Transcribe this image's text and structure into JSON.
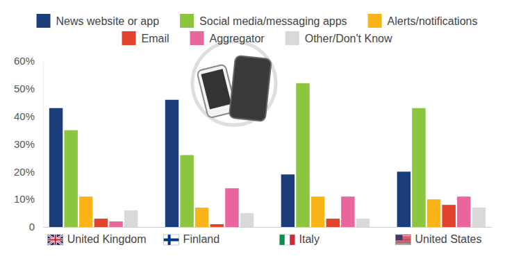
{
  "chart_data": {
    "type": "bar",
    "categories": [
      "United Kingdom",
      "Finland",
      "Italy",
      "United States"
    ],
    "series": [
      {
        "name": "News website or app",
        "color": "#1b3e7a",
        "values": [
          43,
          46,
          19,
          20
        ]
      },
      {
        "name": "Social media/messaging apps",
        "color": "#8cc63e",
        "values": [
          35,
          26,
          52,
          43
        ]
      },
      {
        "name": "Alerts/notifications",
        "color": "#fbb416",
        "values": [
          11,
          7,
          11,
          10
        ]
      },
      {
        "name": "Email",
        "color": "#e2432d",
        "values": [
          3,
          1,
          3,
          8
        ]
      },
      {
        "name": "Aggregator",
        "color": "#e8659e",
        "values": [
          2,
          14,
          11,
          11
        ]
      },
      {
        "name": "Other/Don't Know",
        "color": "#d9d9d9",
        "values": [
          6,
          5,
          3,
          7
        ]
      }
    ],
    "ylim": [
      0,
      60
    ],
    "yticks": [
      0,
      {
        "value": 10,
        "label": "10%"
      },
      {
        "value": 20,
        "label": "20%"
      },
      {
        "value": 30,
        "label": "30%"
      },
      {
        "value": 40,
        "label": "40%"
      },
      {
        "value": 50,
        "label": "50%"
      },
      {
        "value": 60,
        "label": "60%"
      }
    ],
    "grid": false,
    "legend": "top"
  }
}
